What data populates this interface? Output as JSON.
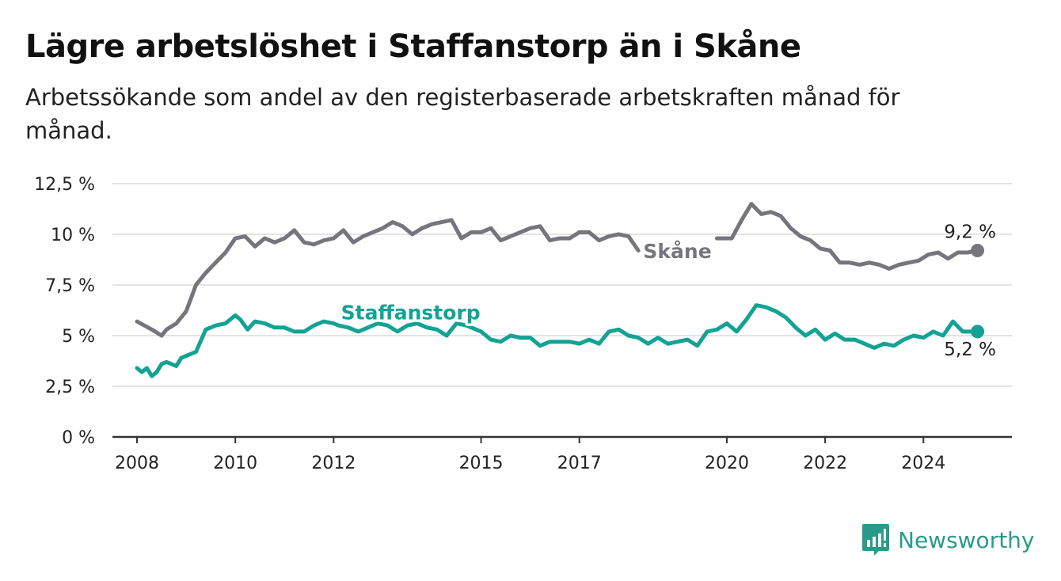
{
  "title": "Lägre arbetslöshet i Staffanstorp än i Skåne",
  "subtitle": "Arbetssökande som andel av den registerbaserade arbetskraften månad för månad.",
  "brand": "Newsworthy",
  "colors": {
    "skane": "#76757c",
    "staffanstorp": "#12a394",
    "grid": "#dcdcdc",
    "axis": "#333333",
    "brand": "#2a9b8b"
  },
  "chart_data": {
    "type": "line",
    "title": "Lägre arbetslöshet i Staffanstorp än i Skåne",
    "subtitle": "Arbetssökande som andel av den registerbaserade arbetskraften månad för månad.",
    "xlabel": "",
    "ylabel": "",
    "ylim": [
      0,
      12.5
    ],
    "xlim": [
      2007.5,
      2025.8
    ],
    "yticks": [
      0,
      2.5,
      5,
      7.5,
      10,
      12.5
    ],
    "ytick_labels": [
      "0 %",
      "2,5 %",
      "5 %",
      "7,5 %",
      "10 %",
      "12,5 %"
    ],
    "xticks": [
      2008,
      2010,
      2012,
      2015,
      2017,
      2020,
      2022,
      2024
    ],
    "xtick_labels": [
      "2008",
      "2010",
      "2012",
      "2015",
      "2017",
      "2020",
      "2022",
      "2024"
    ],
    "grid": true,
    "series": [
      {
        "name": "Skåne",
        "end_label": "9,2 %",
        "x": [
          2008.0,
          2008.15,
          2008.3,
          2008.5,
          2008.6,
          2008.8,
          2009.0,
          2009.2,
          2009.4,
          2009.6,
          2009.8,
          2010.0,
          2010.2,
          2010.4,
          2010.6,
          2010.8,
          2011.0,
          2011.2,
          2011.4,
          2011.6,
          2011.8,
          2012.0,
          2012.2,
          2012.4,
          2012.6,
          2012.8,
          2013.0,
          2013.2,
          2013.4,
          2013.6,
          2013.8,
          2014.0,
          2014.2,
          2014.4,
          2014.6,
          2014.8,
          2015.0,
          2015.2,
          2015.4,
          2015.6,
          2015.8,
          2016.0,
          2016.2,
          2016.4,
          2016.6,
          2016.8,
          2017.0,
          2017.2,
          2017.4,
          2017.6,
          2017.8,
          2018.0,
          2018.2,
          null,
          2019.8,
          2020.1,
          2020.3,
          2020.5,
          2020.7,
          2020.9,
          2021.1,
          2021.3,
          2021.5,
          2021.7,
          2021.9,
          2022.1,
          2022.3,
          2022.5,
          2022.7,
          2022.9,
          2023.1,
          2023.3,
          2023.5,
          2023.7,
          2023.9,
          2024.1,
          2024.3,
          2024.5,
          2024.7,
          2024.9,
          2025.1
        ],
        "y": [
          5.7,
          5.5,
          5.3,
          5.0,
          5.3,
          5.6,
          6.2,
          7.5,
          8.1,
          8.6,
          9.1,
          9.8,
          9.9,
          9.4,
          9.8,
          9.6,
          9.8,
          10.2,
          9.6,
          9.5,
          9.7,
          9.8,
          10.2,
          9.6,
          9.9,
          10.1,
          10.3,
          10.6,
          10.4,
          10.0,
          10.3,
          10.5,
          10.6,
          10.7,
          9.8,
          10.1,
          10.1,
          10.3,
          9.7,
          9.9,
          10.1,
          10.3,
          10.4,
          9.7,
          9.8,
          9.8,
          10.1,
          10.1,
          9.7,
          9.9,
          10.0,
          9.9,
          9.2,
          null,
          9.8,
          9.8,
          10.7,
          11.5,
          11.0,
          11.1,
          10.9,
          10.3,
          9.9,
          9.7,
          9.3,
          9.2,
          8.6,
          8.6,
          8.5,
          8.6,
          8.5,
          8.3,
          8.5,
          8.6,
          8.7,
          9.0,
          9.1,
          8.8,
          9.1,
          9.1,
          9.2
        ]
      },
      {
        "name": "Staffanstorp",
        "end_label": "5,2 %",
        "x": [
          2008.0,
          2008.1,
          2008.2,
          2008.3,
          2008.4,
          2008.5,
          2008.6,
          2008.8,
          2008.9,
          2009.0,
          2009.2,
          2009.4,
          2009.5,
          2009.6,
          2009.8,
          2010.0,
          2010.1,
          2010.25,
          2010.4,
          2010.6,
          2010.8,
          2011.0,
          2011.2,
          2011.4,
          2011.6,
          2011.8,
          2012.0,
          2012.1,
          2012.3,
          2012.5,
          2012.7,
          2012.9,
          2013.1,
          2013.3,
          2013.5,
          2013.7,
          2013.9,
          2014.1,
          2014.3,
          2014.5,
          2014.7,
          2014.9,
          2015.0,
          2015.2,
          2015.4,
          2015.6,
          2015.8,
          2016.0,
          2016.2,
          2016.4,
          2016.6,
          2016.8,
          2017.0,
          2017.2,
          2017.4,
          2017.6,
          2017.8,
          2018.0,
          2018.2,
          2018.4,
          2018.6,
          2018.8,
          2019.0,
          2019.2,
          2019.4,
          2019.6,
          2019.8,
          2020.0,
          2020.2,
          2020.4,
          2020.6,
          2020.8,
          2021.0,
          2021.2,
          2021.4,
          2021.6,
          2021.8,
          2022.0,
          2022.2,
          2022.4,
          2022.6,
          2022.8,
          2023.0,
          2023.2,
          2023.4,
          2023.6,
          2023.8,
          2024.0,
          2024.2,
          2024.4,
          2024.6,
          2024.8,
          2025.1
        ],
        "y": [
          3.4,
          3.2,
          3.4,
          3.0,
          3.2,
          3.6,
          3.7,
          3.5,
          3.9,
          4.0,
          4.2,
          5.3,
          5.4,
          5.5,
          5.6,
          6.0,
          5.8,
          5.3,
          5.7,
          5.6,
          5.4,
          5.4,
          5.2,
          5.2,
          5.5,
          5.7,
          5.6,
          5.5,
          5.4,
          5.2,
          5.4,
          5.6,
          5.5,
          5.2,
          5.5,
          5.6,
          5.4,
          5.3,
          5.0,
          5.6,
          5.5,
          5.3,
          5.2,
          4.8,
          4.7,
          5.0,
          4.9,
          4.9,
          4.5,
          4.7,
          4.7,
          4.7,
          4.6,
          4.8,
          4.6,
          5.2,
          5.3,
          5.0,
          4.9,
          4.6,
          4.9,
          4.6,
          4.7,
          4.8,
          4.5,
          5.2,
          5.3,
          5.6,
          5.2,
          5.8,
          6.5,
          6.4,
          6.2,
          5.9,
          5.4,
          5.0,
          5.3,
          4.8,
          5.1,
          4.8,
          4.8,
          4.6,
          4.4,
          4.6,
          4.5,
          4.8,
          5.0,
          4.9,
          5.2,
          5.0,
          5.7,
          5.2,
          5.2
        ]
      }
    ]
  }
}
